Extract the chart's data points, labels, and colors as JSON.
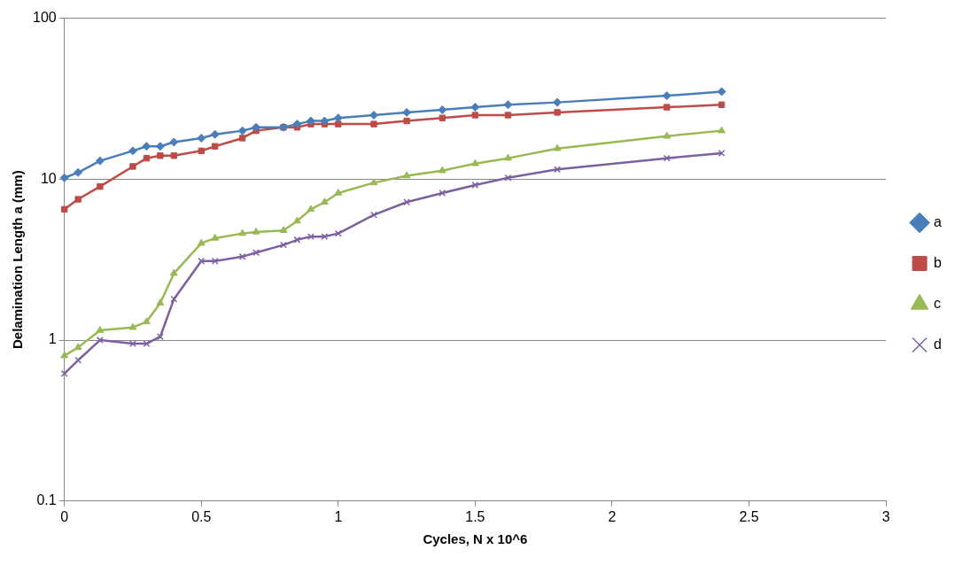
{
  "chart_data": {
    "type": "line",
    "xlabel": "Cycles, N x 10^6",
    "ylabel": "Delamination Length a (mm)",
    "x": [
      0,
      0.05,
      0.13,
      0.25,
      0.3,
      0.35,
      0.4,
      0.5,
      0.55,
      0.65,
      0.7,
      0.8,
      0.85,
      0.9,
      0.95,
      1.0,
      1.13,
      1.25,
      1.38,
      1.5,
      1.62,
      1.8,
      2.2,
      2.4
    ],
    "series": [
      {
        "name": "a",
        "color": "#4a7ebb",
        "marker": "diamond",
        "values": [
          10.2,
          11,
          13,
          15,
          16,
          16,
          17,
          18,
          19,
          20,
          21,
          21,
          22,
          23,
          23,
          24,
          25,
          26,
          27,
          28,
          29,
          30,
          33,
          35
        ]
      },
      {
        "name": "b",
        "color": "#be4b48",
        "marker": "square",
        "values": [
          6.5,
          7.5,
          9,
          12,
          13.5,
          14,
          14,
          15,
          16,
          18,
          20,
          21,
          21,
          22,
          22,
          22,
          22,
          23,
          24,
          25,
          25,
          26,
          28,
          29
        ]
      },
      {
        "name": "c",
        "color": "#98b954",
        "marker": "triangle",
        "values": [
          0.8,
          0.9,
          1.15,
          1.2,
          1.3,
          1.7,
          2.6,
          4.0,
          4.3,
          4.6,
          4.7,
          4.8,
          5.5,
          6.5,
          7.2,
          8.2,
          9.5,
          10.5,
          11.3,
          12.5,
          13.5,
          15.5,
          18.5,
          20
        ]
      },
      {
        "name": "d",
        "color": "#7d60a0",
        "marker": "cross",
        "values": [
          0.62,
          0.75,
          1.0,
          0.95,
          0.95,
          1.05,
          1.8,
          3.1,
          3.1,
          3.3,
          3.5,
          3.9,
          4.2,
          4.4,
          4.4,
          4.6,
          6.0,
          7.2,
          8.2,
          9.2,
          10.2,
          11.5,
          13.5,
          14.5
        ]
      }
    ],
    "xlim": [
      0,
      3
    ],
    "xticks": [
      0,
      0.5,
      1,
      1.5,
      2,
      2.5,
      3
    ],
    "ylim": [
      0.1,
      100
    ],
    "yticks": [
      0.1,
      1,
      10,
      100
    ],
    "log": "y",
    "grid": "y",
    "legend": "right",
    "line_style": "solid"
  }
}
